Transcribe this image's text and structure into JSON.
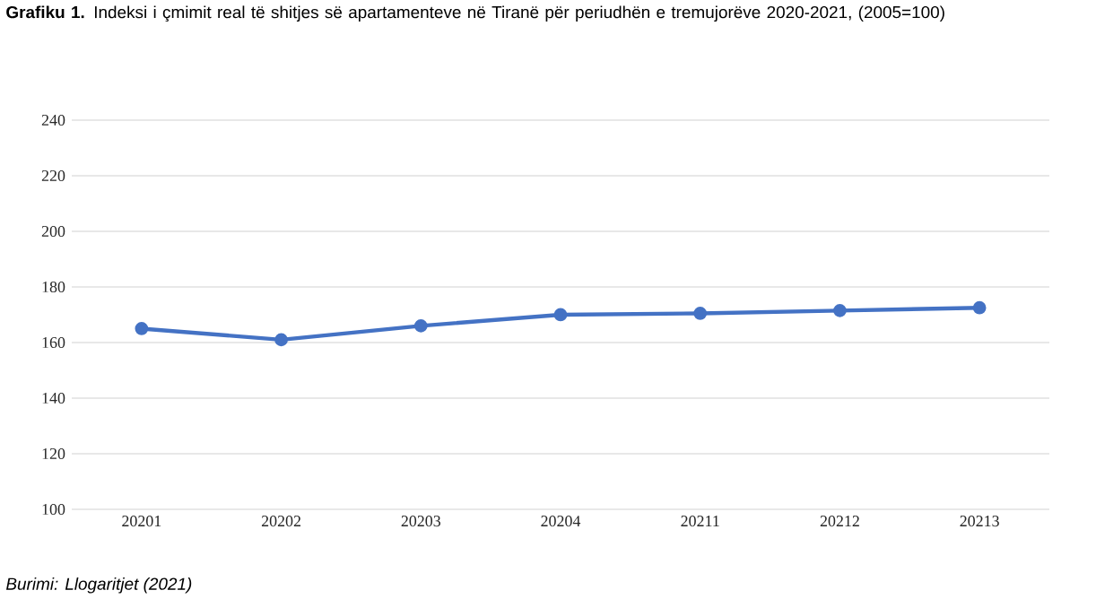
{
  "chart_data": {
    "type": "line",
    "title": "**Grafiku 1.** Indeksi i çmimit real të shitjes së apartamenteve në Tiranë për periudhën e tremujorëve 2020-2021, (2005=100)",
    "categories": [
      "20201",
      "20202",
      "20203",
      "20204",
      "20211",
      "20212",
      "20213"
    ],
    "values": [
      165,
      161,
      166,
      170,
      170.5,
      171.5,
      172.5
    ],
    "color": "#4472c4",
    "marker": "circle",
    "line_style": "solid",
    "ylim": [
      100,
      240
    ],
    "yticks": [
      100,
      120,
      140,
      160,
      180,
      200,
      220,
      240
    ],
    "grid": "y",
    "annotations": [
      "Burimi: Llogaritjet (2021)"
    ]
  }
}
